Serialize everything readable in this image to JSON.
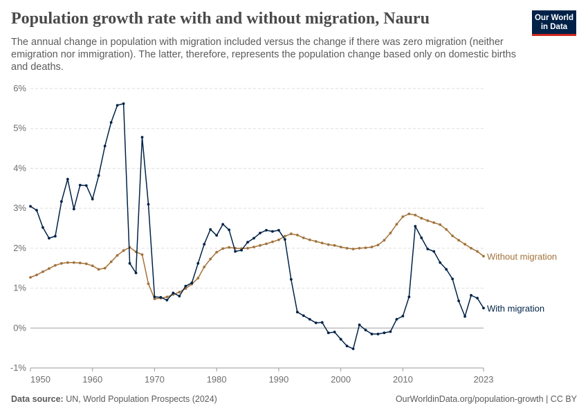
{
  "header": {
    "title": "Population growth rate with and without migration, Nauru",
    "subtitle": "The annual change in population with migration included versus the change if there was zero migration (neither emigration nor immigration). The latter, therefore, represents the population change based only on domestic births and deaths.",
    "logo_line1": "Our World",
    "logo_line2": "in Data"
  },
  "footer": {
    "source_label": "Data source:",
    "source_text": "UN, World Population Prospects (2024)",
    "link_text": "OurWorldinData.org/population-growth | CC BY"
  },
  "colors": {
    "with_migration": "#002147",
    "without_migration": "#a2723a",
    "grid": "#dddddd",
    "zero_line": "#a0a0a0"
  },
  "chart_data": {
    "type": "line",
    "title": "Population growth rate with and without migration, Nauru",
    "xlim": [
      1950,
      2023
    ],
    "ylim": [
      -1,
      6
    ],
    "x_ticks": [
      "1950",
      "1960",
      "1970",
      "1980",
      "1990",
      "2000",
      "2010",
      "2023"
    ],
    "x_tick_values": [
      1950,
      1960,
      1970,
      1980,
      1990,
      2000,
      2010,
      2023
    ],
    "y_ticks": [
      "-1%",
      "0%",
      "1%",
      "2%",
      "3%",
      "4%",
      "5%",
      "6%"
    ],
    "y_tick_values": [
      -1,
      0,
      1,
      2,
      3,
      4,
      5,
      6
    ],
    "grid": "horizontal dashed",
    "legend": "inline labels at line ends",
    "series": [
      {
        "name": "With migration",
        "x": [
          1950,
          1951,
          1952,
          1953,
          1954,
          1955,
          1956,
          1957,
          1958,
          1959,
          1960,
          1961,
          1962,
          1963,
          1964,
          1965,
          1966,
          1967,
          1968,
          1969,
          1970,
          1971,
          1972,
          1973,
          1974,
          1975,
          1976,
          1977,
          1978,
          1979,
          1980,
          1981,
          1982,
          1983,
          1984,
          1985,
          1986,
          1987,
          1988,
          1989,
          1990,
          1991,
          1992,
          1993,
          1994,
          1995,
          1996,
          1997,
          1998,
          1999,
          2000,
          2001,
          2002,
          2003,
          2004,
          2005,
          2006,
          2007,
          2008,
          2009,
          2010,
          2011,
          2012,
          2013,
          2014,
          2015,
          2016,
          2017,
          2018,
          2019,
          2020,
          2021,
          2022,
          2023
        ],
        "y": [
          3.05,
          2.95,
          2.52,
          2.25,
          2.3,
          3.17,
          3.73,
          2.98,
          3.58,
          3.57,
          3.23,
          3.82,
          4.56,
          5.15,
          5.58,
          5.62,
          1.62,
          1.38,
          4.78,
          3.1,
          0.78,
          0.77,
          0.7,
          0.88,
          0.8,
          1.05,
          1.13,
          1.62,
          2.1,
          2.47,
          2.32,
          2.6,
          2.46,
          1.92,
          1.95,
          2.15,
          2.25,
          2.38,
          2.45,
          2.42,
          2.45,
          2.22,
          1.22,
          0.4,
          0.31,
          0.22,
          0.13,
          0.14,
          -0.12,
          -0.1,
          -0.28,
          -0.45,
          -0.52,
          0.08,
          -0.05,
          -0.15,
          -0.15,
          -0.12,
          -0.09,
          0.22,
          0.3,
          0.78,
          2.55,
          2.26,
          1.98,
          1.92,
          1.64,
          1.47,
          1.23,
          0.68,
          0.29,
          0.82,
          0.75,
          0.5
        ]
      },
      {
        "name": "Without migration",
        "x": [
          1950,
          1951,
          1952,
          1953,
          1954,
          1955,
          1956,
          1957,
          1958,
          1959,
          1960,
          1961,
          1962,
          1963,
          1964,
          1965,
          1966,
          1967,
          1968,
          1969,
          1970,
          1971,
          1972,
          1973,
          1974,
          1975,
          1976,
          1977,
          1978,
          1979,
          1980,
          1981,
          1982,
          1983,
          1984,
          1985,
          1986,
          1987,
          1988,
          1989,
          1990,
          1991,
          1992,
          1993,
          1994,
          1995,
          1996,
          1997,
          1998,
          1999,
          2000,
          2001,
          2002,
          2003,
          2004,
          2005,
          2006,
          2007,
          2008,
          2009,
          2010,
          2011,
          2012,
          2013,
          2014,
          2015,
          2016,
          2017,
          2018,
          2019,
          2020,
          2021,
          2022,
          2023
        ],
        "y": [
          1.27,
          1.33,
          1.41,
          1.49,
          1.57,
          1.62,
          1.64,
          1.64,
          1.63,
          1.61,
          1.56,
          1.47,
          1.5,
          1.66,
          1.82,
          1.94,
          2.02,
          1.91,
          1.84,
          1.11,
          0.73,
          0.75,
          0.78,
          0.84,
          0.9,
          0.99,
          1.1,
          1.25,
          1.53,
          1.73,
          1.9,
          1.99,
          2.02,
          2.0,
          1.99,
          2.0,
          2.03,
          2.07,
          2.11,
          2.16,
          2.21,
          2.3,
          2.36,
          2.33,
          2.26,
          2.21,
          2.17,
          2.13,
          2.09,
          2.07,
          2.03,
          2.0,
          1.98,
          2.0,
          2.01,
          2.03,
          2.08,
          2.2,
          2.38,
          2.6,
          2.79,
          2.86,
          2.83,
          2.75,
          2.69,
          2.64,
          2.59,
          2.47,
          2.31,
          2.2,
          2.1,
          2.0,
          1.92,
          1.8
        ]
      }
    ]
  }
}
